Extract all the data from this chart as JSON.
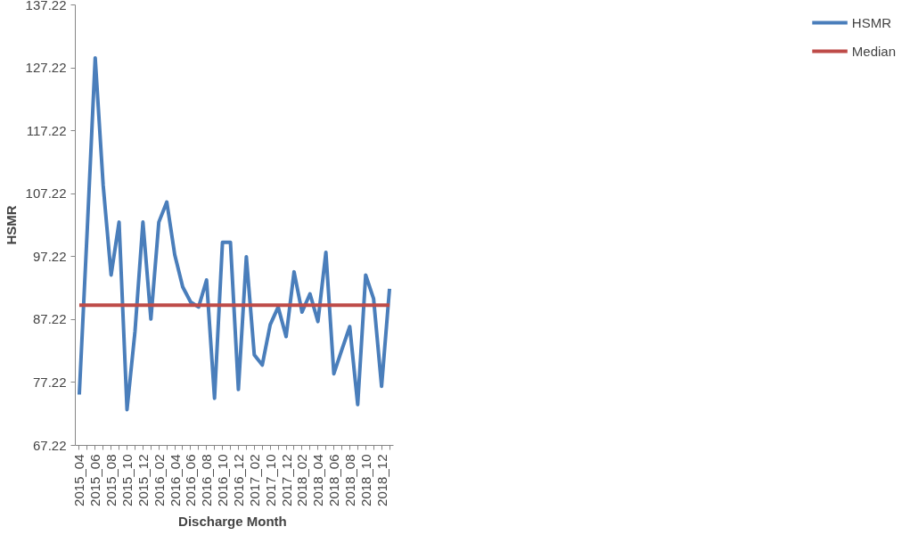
{
  "chart_data": {
    "type": "line",
    "xlabel": "Discharge  Month",
    "ylabel": "HSMR",
    "categories": [
      "2015_04",
      null,
      "2015_06",
      null,
      "2015_08",
      null,
      "2015_10",
      null,
      "2015_12",
      null,
      "2016_02",
      null,
      "2016_04",
      null,
      "2016_06",
      null,
      "2016_08",
      null,
      "2016_10",
      null,
      "2016_12",
      null,
      "2017_02",
      null,
      "2017_10",
      null,
      "2017_12",
      null,
      "2018_02",
      null,
      "2018_04",
      null,
      "2018_06",
      null,
      "2018_08",
      null,
      "2018_10",
      null,
      "2018_12",
      null
    ],
    "series": [
      {
        "name": "HSMR",
        "color": "#4a7ebb",
        "values": [
          75.3,
          101.5,
          128.8,
          108.6,
          94.3,
          102.7,
          72.9,
          85.3,
          102.7,
          87.3,
          102.7,
          105.9,
          97.5,
          92.4,
          90.0,
          89.2,
          93.5,
          74.7,
          99.5,
          99.5,
          76.1,
          97.2,
          81.6,
          80.0,
          86.4,
          89.2,
          84.5,
          94.8,
          88.4,
          91.3,
          86.9,
          97.9,
          78.6,
          82.4,
          86.1,
          73.7,
          94.3,
          90.5,
          76.6,
          92.1
        ]
      },
      {
        "name": "Median",
        "color": "#be4b48",
        "values": [
          89.5,
          89.5,
          89.5,
          89.5,
          89.5,
          89.5,
          89.5,
          89.5,
          89.5,
          89.5,
          89.5,
          89.5,
          89.5,
          89.5,
          89.5,
          89.5,
          89.5,
          89.5,
          89.5,
          89.5,
          89.5,
          89.5,
          89.5,
          89.5,
          89.5,
          89.5,
          89.5,
          89.5,
          89.5,
          89.5,
          89.5,
          89.5,
          89.5,
          89.5,
          89.5,
          89.5,
          89.5,
          89.5,
          89.5,
          89.5
        ]
      }
    ],
    "ylim": [
      67.22,
      137.22
    ],
    "yticks": [
      67.22,
      77.22,
      87.22,
      97.22,
      107.22,
      117.22,
      127.22,
      137.22
    ],
    "grid": false,
    "legend": "right",
    "line_style": "solid"
  }
}
